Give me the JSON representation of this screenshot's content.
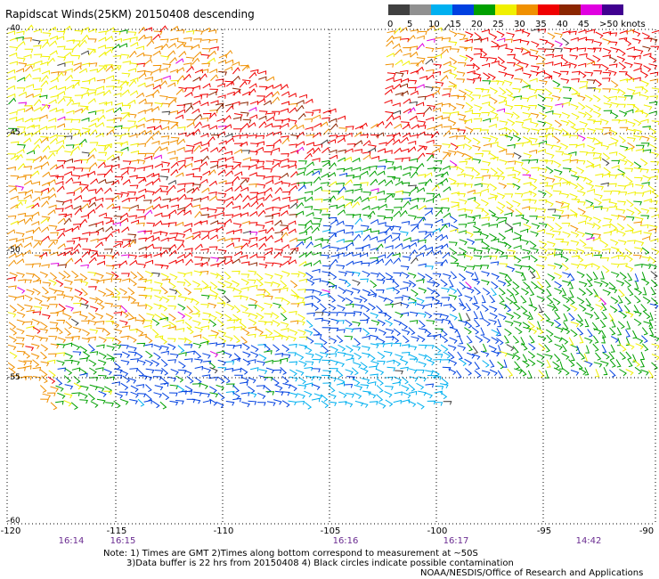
{
  "title": "Rapidscat Winds(25KM) 20150408 descending",
  "legend": {
    "labels": [
      "0",
      "5",
      "10",
      "15",
      "20",
      "25",
      "30",
      "35",
      "40",
      "45",
      ">50 knots"
    ],
    "colors": [
      "#404040",
      "#909090",
      "#00b0f0",
      "#0040e0",
      "#00a000",
      "#f0f000",
      "#f09000",
      "#f00000",
      "#8b2500",
      "#e000e0",
      "#400090"
    ]
  },
  "axes": {
    "lat_labels": [
      "-40",
      "-45",
      "-50",
      "-55",
      "-60"
    ],
    "lon_labels": [
      "-120",
      "-115",
      "-110",
      "-105",
      "-100",
      "-95",
      "-90"
    ]
  },
  "times": [
    "16:14",
    "16:15",
    "16:16",
    "16:17",
    "14:42"
  ],
  "notes": {
    "line1": "Note: 1) Times are GMT 2)Times along bottom correspond to measurement at ~50S",
    "line2": "3)Data buffer is 22 hrs from 20150408 4) Black circles indicate possible contamination"
  },
  "credit": "NOAA/NESDIS/Office of Research and Applications"
}
